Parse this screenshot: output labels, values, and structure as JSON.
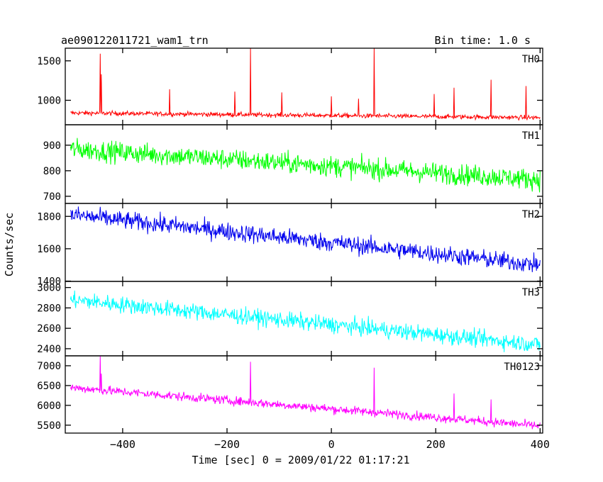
{
  "header": {
    "title": "ae090122011721_wam1_trn",
    "bin_time": "Bin time: 1.0 s"
  },
  "chart_data": {
    "type": "line",
    "x_label": "Time [sec] 0 = 2009/01/22 01:17:21",
    "y_label": "Counts/sec",
    "xlim": [
      -510,
      405
    ],
    "x_ticks": [
      -400,
      -200,
      0,
      200,
      400
    ],
    "x_tick_labels": [
      "−400",
      "−200",
      "0",
      "200",
      "400"
    ],
    "shared_x_range": [
      -500,
      400
    ],
    "panels": [
      {
        "name": "TH0",
        "color": "#ff0000",
        "ylim": [
          690,
          1660
        ],
        "y_ticks": [
          1000,
          1500
        ],
        "y_tick_labels": [
          "1000",
          "1500"
        ],
        "trend": [
          -500,
          840,
          400,
          780
        ],
        "noise": 28,
        "spikes": [
          [
            -443,
            1590
          ],
          [
            -441,
            1330
          ],
          [
            -310,
            1140
          ],
          [
            -155,
            1660
          ],
          [
            -185,
            1110
          ],
          [
            -95,
            1100
          ],
          [
            0,
            1050
          ],
          [
            52,
            1020
          ],
          [
            82,
            1660
          ],
          [
            197,
            1080
          ],
          [
            235,
            1160
          ],
          [
            306,
            1260
          ],
          [
            373,
            1180
          ]
        ]
      },
      {
        "name": "TH1",
        "color": "#00ff00",
        "ylim": [
          672,
          980
        ],
        "y_ticks": [
          700,
          800,
          900
        ],
        "y_tick_labels": [
          "700",
          "800",
          "900"
        ],
        "trend": [
          -500,
          885,
          400,
          765
        ],
        "noise": 40,
        "spikes": []
      },
      {
        "name": "TH2",
        "color": "#0000ee",
        "ylim": [
          1398,
          1880
        ],
        "y_ticks": [
          1400,
          1600,
          1800
        ],
        "y_tick_labels": [
          "1400",
          "1600",
          "1800"
        ],
        "trend": [
          -500,
          1810,
          400,
          1500
        ],
        "noise": 55,
        "spikes": []
      },
      {
        "name": "TH3",
        "color": "#00ffff",
        "ylim": [
          2330,
          3060
        ],
        "y_ticks": [
          2400,
          2600,
          2800,
          3000
        ],
        "y_tick_labels": [
          "2400",
          "2600",
          "2800",
          "3000"
        ],
        "trend": [
          -500,
          2880,
          400,
          2440
        ],
        "noise": 80,
        "spikes": []
      },
      {
        "name": "TH0123",
        "color": "#ff00ff",
        "ylim": [
          5300,
          7250
        ],
        "y_ticks": [
          5500,
          6000,
          6500,
          7000
        ],
        "y_tick_labels": [
          "5500",
          "6000",
          "6500",
          "7000"
        ],
        "trend": [
          -500,
          6450,
          400,
          5480
        ],
        "noise": 110,
        "spikes": [
          [
            -443,
            7250
          ],
          [
            -441,
            6800
          ],
          [
            -155,
            7100
          ],
          [
            82,
            6950
          ],
          [
            235,
            6300
          ],
          [
            306,
            6150
          ]
        ]
      }
    ]
  }
}
